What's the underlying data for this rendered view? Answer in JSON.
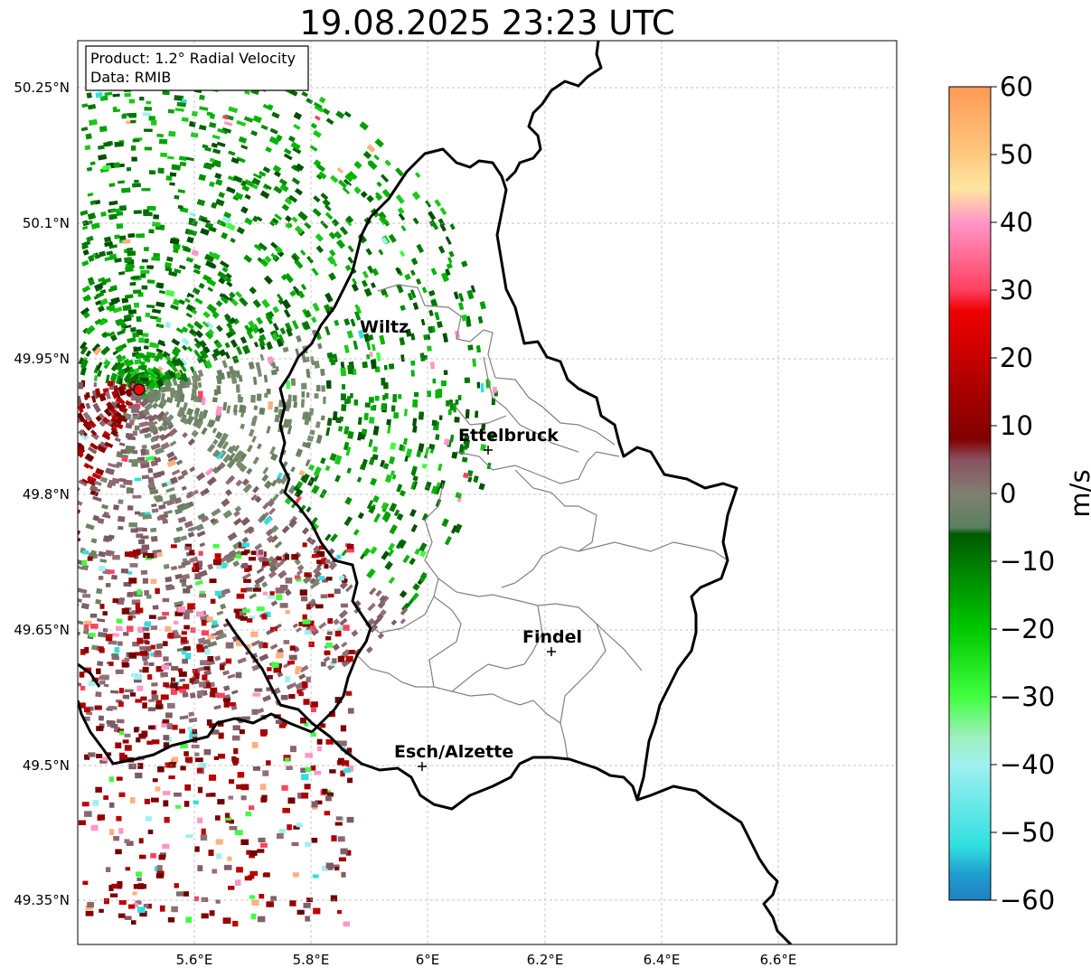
{
  "title": "19.08.2025 23:23 UTC",
  "info_box": {
    "product": "Product: 1.2° Radial Velocity",
    "data": "Data: RMIB"
  },
  "axes": {
    "lat_ticks": [
      "50.25°N",
      "50.1°N",
      "49.95°N",
      "49.8°N",
      "49.65°N",
      "49.5°N",
      "49.35°N"
    ],
    "lon_ticks": [
      "5.6°E",
      "5.8°E",
      "6°E",
      "6.2°E",
      "6.4°E",
      "6.6°E"
    ]
  },
  "cities": [
    {
      "name": "Wiltz"
    },
    {
      "name": "Ettelbruck"
    },
    {
      "name": "Findel"
    },
    {
      "name": "Esch/Alzette"
    }
  ],
  "colorbar": {
    "label": "m/s",
    "ticks": [
      "60",
      "50",
      "40",
      "30",
      "20",
      "10",
      "0",
      "−10",
      "−20",
      "−30",
      "−40",
      "−50",
      "−60"
    ],
    "stops": [
      {
        "value": 60,
        "color": "#ff9a55"
      },
      {
        "value": 50,
        "color": "#ffc880"
      },
      {
        "value": 45,
        "color": "#ffe6a0"
      },
      {
        "value": 40,
        "color": "#ff96c8"
      },
      {
        "value": 30,
        "color": "#ff4060"
      },
      {
        "value": 27,
        "color": "#f00000"
      },
      {
        "value": 15,
        "color": "#a80000"
      },
      {
        "value": 8,
        "color": "#800000"
      },
      {
        "value": 5,
        "color": "#8a5060"
      },
      {
        "value": 0,
        "color": "#808070"
      },
      {
        "value": -5,
        "color": "#5a8060"
      },
      {
        "value": -6,
        "color": "#005a00"
      },
      {
        "value": -20,
        "color": "#00c800"
      },
      {
        "value": -30,
        "color": "#40ff40"
      },
      {
        "value": -36,
        "color": "#a0f0c0"
      },
      {
        "value": -40,
        "color": "#a0f0f0"
      },
      {
        "value": -52,
        "color": "#30e0e0"
      },
      {
        "value": -56,
        "color": "#20a0d0"
      },
      {
        "value": -60,
        "color": "#2080c0"
      }
    ]
  },
  "radar_site": {
    "color": "#ff0000"
  }
}
